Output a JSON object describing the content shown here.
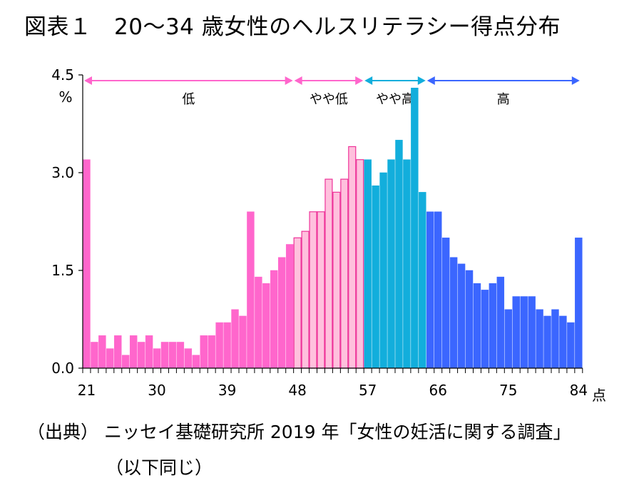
{
  "title": "図表１　20～34 歳女性のヘルスリテラシー得点分布",
  "source_line1": "（出典） ニッセイ基礎研究所 2019 年「女性の妊活に関する調査」",
  "source_line2": "（以下同じ）",
  "colors": {
    "low": "#ff66cc",
    "mid_low": "#ffc0dd",
    "mid_low_border": "#ee3399",
    "mid_high": "#12aedc",
    "high": "#3b66ff",
    "axis": "#000000"
  },
  "chart_data": {
    "type": "bar",
    "y_unit": "%",
    "x_unit": "点",
    "ylim": [
      0,
      4.5
    ],
    "yticks": [
      "0.0",
      "1.5",
      "3.0",
      "4.5"
    ],
    "xticks": [
      "21",
      "30",
      "39",
      "48",
      "57",
      "66",
      "75",
      "84"
    ],
    "x": [
      21,
      22,
      23,
      24,
      25,
      26,
      27,
      28,
      29,
      30,
      31,
      32,
      33,
      34,
      35,
      36,
      37,
      38,
      39,
      40,
      41,
      42,
      43,
      44,
      45,
      46,
      47,
      48,
      49,
      50,
      51,
      52,
      53,
      54,
      55,
      56,
      57,
      58,
      59,
      60,
      61,
      62,
      63,
      64,
      65,
      66,
      67,
      68,
      69,
      70,
      71,
      72,
      73,
      74,
      75,
      76,
      77,
      78,
      79,
      80,
      81,
      82,
      83,
      84
    ],
    "values": [
      3.2,
      0.4,
      0.5,
      0.3,
      0.5,
      0.2,
      0.5,
      0.4,
      0.5,
      0.3,
      0.4,
      0.4,
      0.4,
      0.3,
      0.2,
      0.5,
      0.5,
      0.7,
      0.7,
      0.9,
      0.8,
      2.4,
      1.4,
      1.3,
      1.5,
      1.7,
      1.9,
      2.0,
      2.1,
      2.4,
      2.4,
      2.9,
      2.7,
      2.9,
      3.4,
      3.2,
      3.2,
      2.8,
      3.0,
      3.2,
      3.5,
      3.2,
      4.3,
      2.7,
      2.4,
      2.4,
      2.0,
      1.7,
      1.6,
      1.5,
      1.3,
      1.2,
      1.3,
      1.4,
      0.9,
      1.1,
      1.1,
      1.1,
      0.9,
      0.8,
      0.9,
      0.8,
      0.7,
      2.0
    ],
    "bands": [
      {
        "name": "低",
        "from": 21,
        "to": 47
      },
      {
        "name": "やや低",
        "from": 48,
        "to": 56
      },
      {
        "name": "やや高",
        "from": 57,
        "to": 64
      },
      {
        "name": "高",
        "from": 65,
        "to": 84
      }
    ],
    "grid": false
  }
}
